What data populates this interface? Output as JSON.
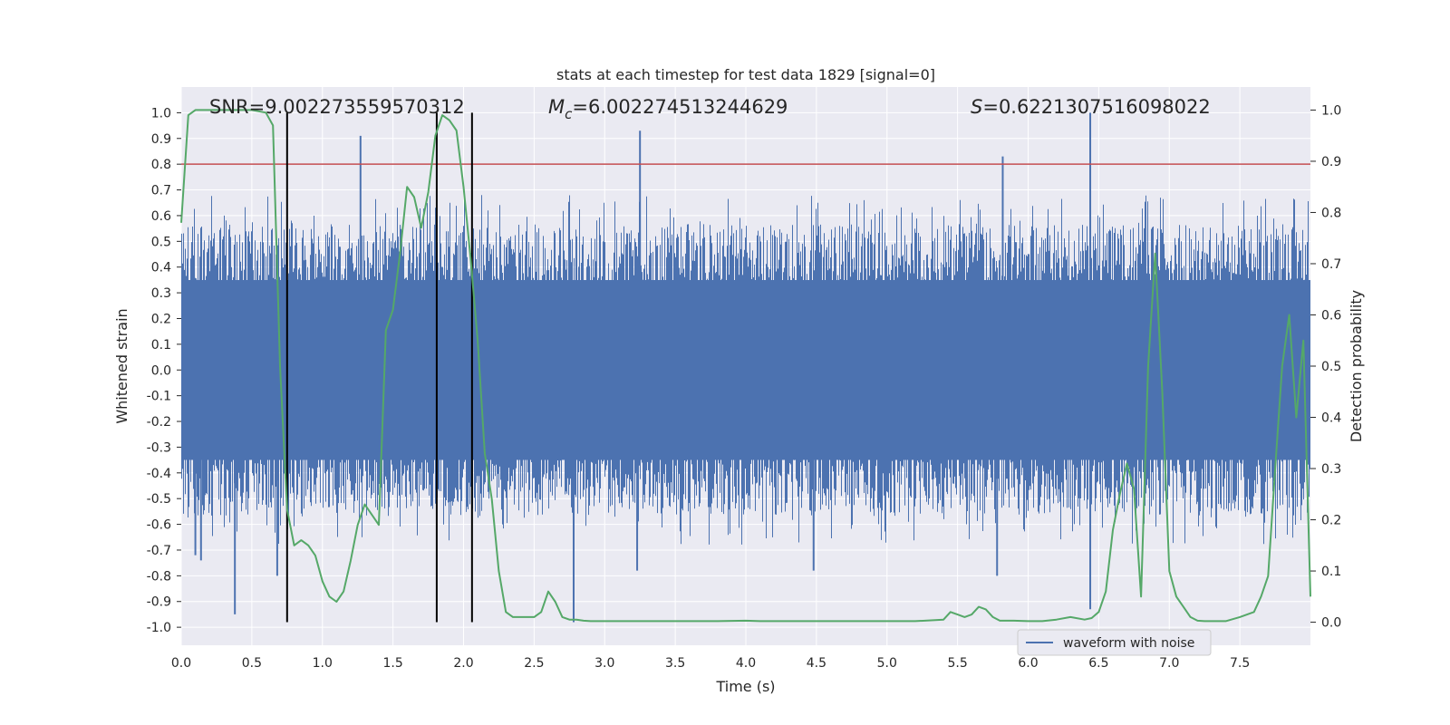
{
  "chart_data": {
    "type": "line",
    "title": "stats at each timestep for test data 1829 [signal=0]",
    "xlabel": "Time (s)",
    "ylabel_left": "Whitened strain",
    "ylabel_right": "Detection probability",
    "xlim": [
      0.0,
      8.0
    ],
    "ylim_left": [
      -1.07,
      1.1
    ],
    "ylim_right": [
      -0.045,
      1.045
    ],
    "x_ticks": [
      "0.0",
      "0.5",
      "1.0",
      "1.5",
      "2.0",
      "2.5",
      "3.0",
      "3.5",
      "4.0",
      "4.5",
      "5.0",
      "5.5",
      "6.0",
      "6.5",
      "7.0",
      "7.5"
    ],
    "y_ticks_left": [
      "1.0",
      "0.9",
      "0.8",
      "0.7",
      "0.6",
      "0.5",
      "0.4",
      "0.3",
      "0.2",
      "0.1",
      "0.0",
      "-0.1",
      "-0.2",
      "-0.3",
      "-0.4",
      "-0.5",
      "-0.6",
      "-0.7",
      "-0.8",
      "-0.9",
      "-1.0"
    ],
    "y_ticks_right": [
      "1.0",
      "0.9",
      "0.8",
      "0.7",
      "0.6",
      "0.5",
      "0.4",
      "0.3",
      "0.2",
      "0.1",
      "0.0"
    ],
    "annotations": {
      "snr": "SNR=9.002273559570312",
      "mc_symbol": "M",
      "mc_sub": "c",
      "mc_value": "=6.002274513244629",
      "s_symbol": "S",
      "s_value": "=0.6221307516098022"
    },
    "threshold": 0.8,
    "vertical_lines_s": [
      0.75,
      1.81,
      2.06
    ],
    "waveform_spikes": [
      {
        "t": 0.38,
        "v": -0.95
      },
      {
        "t": 0.68,
        "v": -0.8
      },
      {
        "t": 1.27,
        "v": 0.91
      },
      {
        "t": 2.78,
        "v": -0.98
      },
      {
        "t": 3.25,
        "v": 0.93
      },
      {
        "t": 3.23,
        "v": -0.78
      },
      {
        "t": 4.48,
        "v": -0.78
      },
      {
        "t": 5.82,
        "v": 0.83
      },
      {
        "t": 5.78,
        "v": -0.8
      },
      {
        "t": 6.44,
        "v": 1.0
      },
      {
        "t": 6.44,
        "v": -0.93
      },
      {
        "t": 0.14,
        "v": -0.74
      },
      {
        "t": 0.1,
        "v": -0.72
      }
    ],
    "series": [
      {
        "name": "waveform with noise",
        "color": "#4c72b0",
        "kind": "noise-envelope",
        "core_amplitude": 0.38,
        "burst_amplitude": 0.68
      },
      {
        "name": "detection probability",
        "color": "#55a868",
        "axis": "right",
        "x": [
          0.0,
          0.05,
          0.1,
          0.2,
          0.3,
          0.4,
          0.5,
          0.6,
          0.65,
          0.7,
          0.75,
          0.8,
          0.85,
          0.9,
          0.95,
          1.0,
          1.05,
          1.1,
          1.15,
          1.2,
          1.25,
          1.3,
          1.35,
          1.4,
          1.45,
          1.5,
          1.55,
          1.6,
          1.65,
          1.7,
          1.75,
          1.8,
          1.85,
          1.9,
          1.95,
          2.0,
          2.05,
          2.1,
          2.15,
          2.2,
          2.25,
          2.3,
          2.35,
          2.4,
          2.45,
          2.5,
          2.55,
          2.6,
          2.65,
          2.7,
          2.75,
          2.8,
          2.85,
          2.9,
          3.0,
          3.1,
          3.2,
          3.4,
          3.6,
          3.8,
          4.0,
          4.1,
          4.2,
          4.4,
          4.6,
          4.8,
          5.0,
          5.2,
          5.4,
          5.45,
          5.5,
          5.55,
          5.6,
          5.65,
          5.7,
          5.75,
          5.8,
          5.85,
          5.9,
          6.0,
          6.1,
          6.2,
          6.3,
          6.4,
          6.45,
          6.5,
          6.55,
          6.6,
          6.65,
          6.7,
          6.75,
          6.8,
          6.85,
          6.9,
          6.95,
          7.0,
          7.05,
          7.1,
          7.15,
          7.2,
          7.25,
          7.3,
          7.4,
          7.5,
          7.6,
          7.65,
          7.7,
          7.75,
          7.8,
          7.85,
          7.9,
          7.95,
          8.0
        ],
        "values": [
          0.78,
          0.99,
          1.0,
          1.0,
          1.0,
          1.0,
          1.0,
          0.995,
          0.97,
          0.5,
          0.22,
          0.15,
          0.16,
          0.15,
          0.13,
          0.08,
          0.05,
          0.04,
          0.06,
          0.12,
          0.19,
          0.23,
          0.21,
          0.19,
          0.57,
          0.61,
          0.72,
          0.85,
          0.83,
          0.77,
          0.84,
          0.95,
          0.99,
          0.98,
          0.96,
          0.85,
          0.71,
          0.55,
          0.33,
          0.24,
          0.1,
          0.02,
          0.01,
          0.01,
          0.01,
          0.01,
          0.02,
          0.06,
          0.04,
          0.01,
          0.005,
          0.005,
          0.003,
          0.002,
          0.002,
          0.002,
          0.002,
          0.002,
          0.002,
          0.002,
          0.003,
          0.002,
          0.002,
          0.002,
          0.002,
          0.002,
          0.002,
          0.002,
          0.005,
          0.02,
          0.015,
          0.01,
          0.015,
          0.03,
          0.025,
          0.01,
          0.003,
          0.003,
          0.003,
          0.002,
          0.002,
          0.005,
          0.01,
          0.005,
          0.008,
          0.02,
          0.06,
          0.18,
          0.25,
          0.31,
          0.26,
          0.05,
          0.5,
          0.72,
          0.45,
          0.1,
          0.05,
          0.03,
          0.01,
          0.003,
          0.002,
          0.002,
          0.002,
          0.01,
          0.02,
          0.05,
          0.09,
          0.3,
          0.5,
          0.6,
          0.4,
          0.55,
          0.05
        ]
      }
    ],
    "legend": {
      "label": "waveform with noise",
      "position": "lower-right"
    }
  },
  "colors": {
    "plot_bg": "#eaeaf2",
    "grid": "#ffffff",
    "waveform": "#4c72b0",
    "probability": "#55a868",
    "threshold": "#c44e52",
    "vline": "#000000"
  }
}
